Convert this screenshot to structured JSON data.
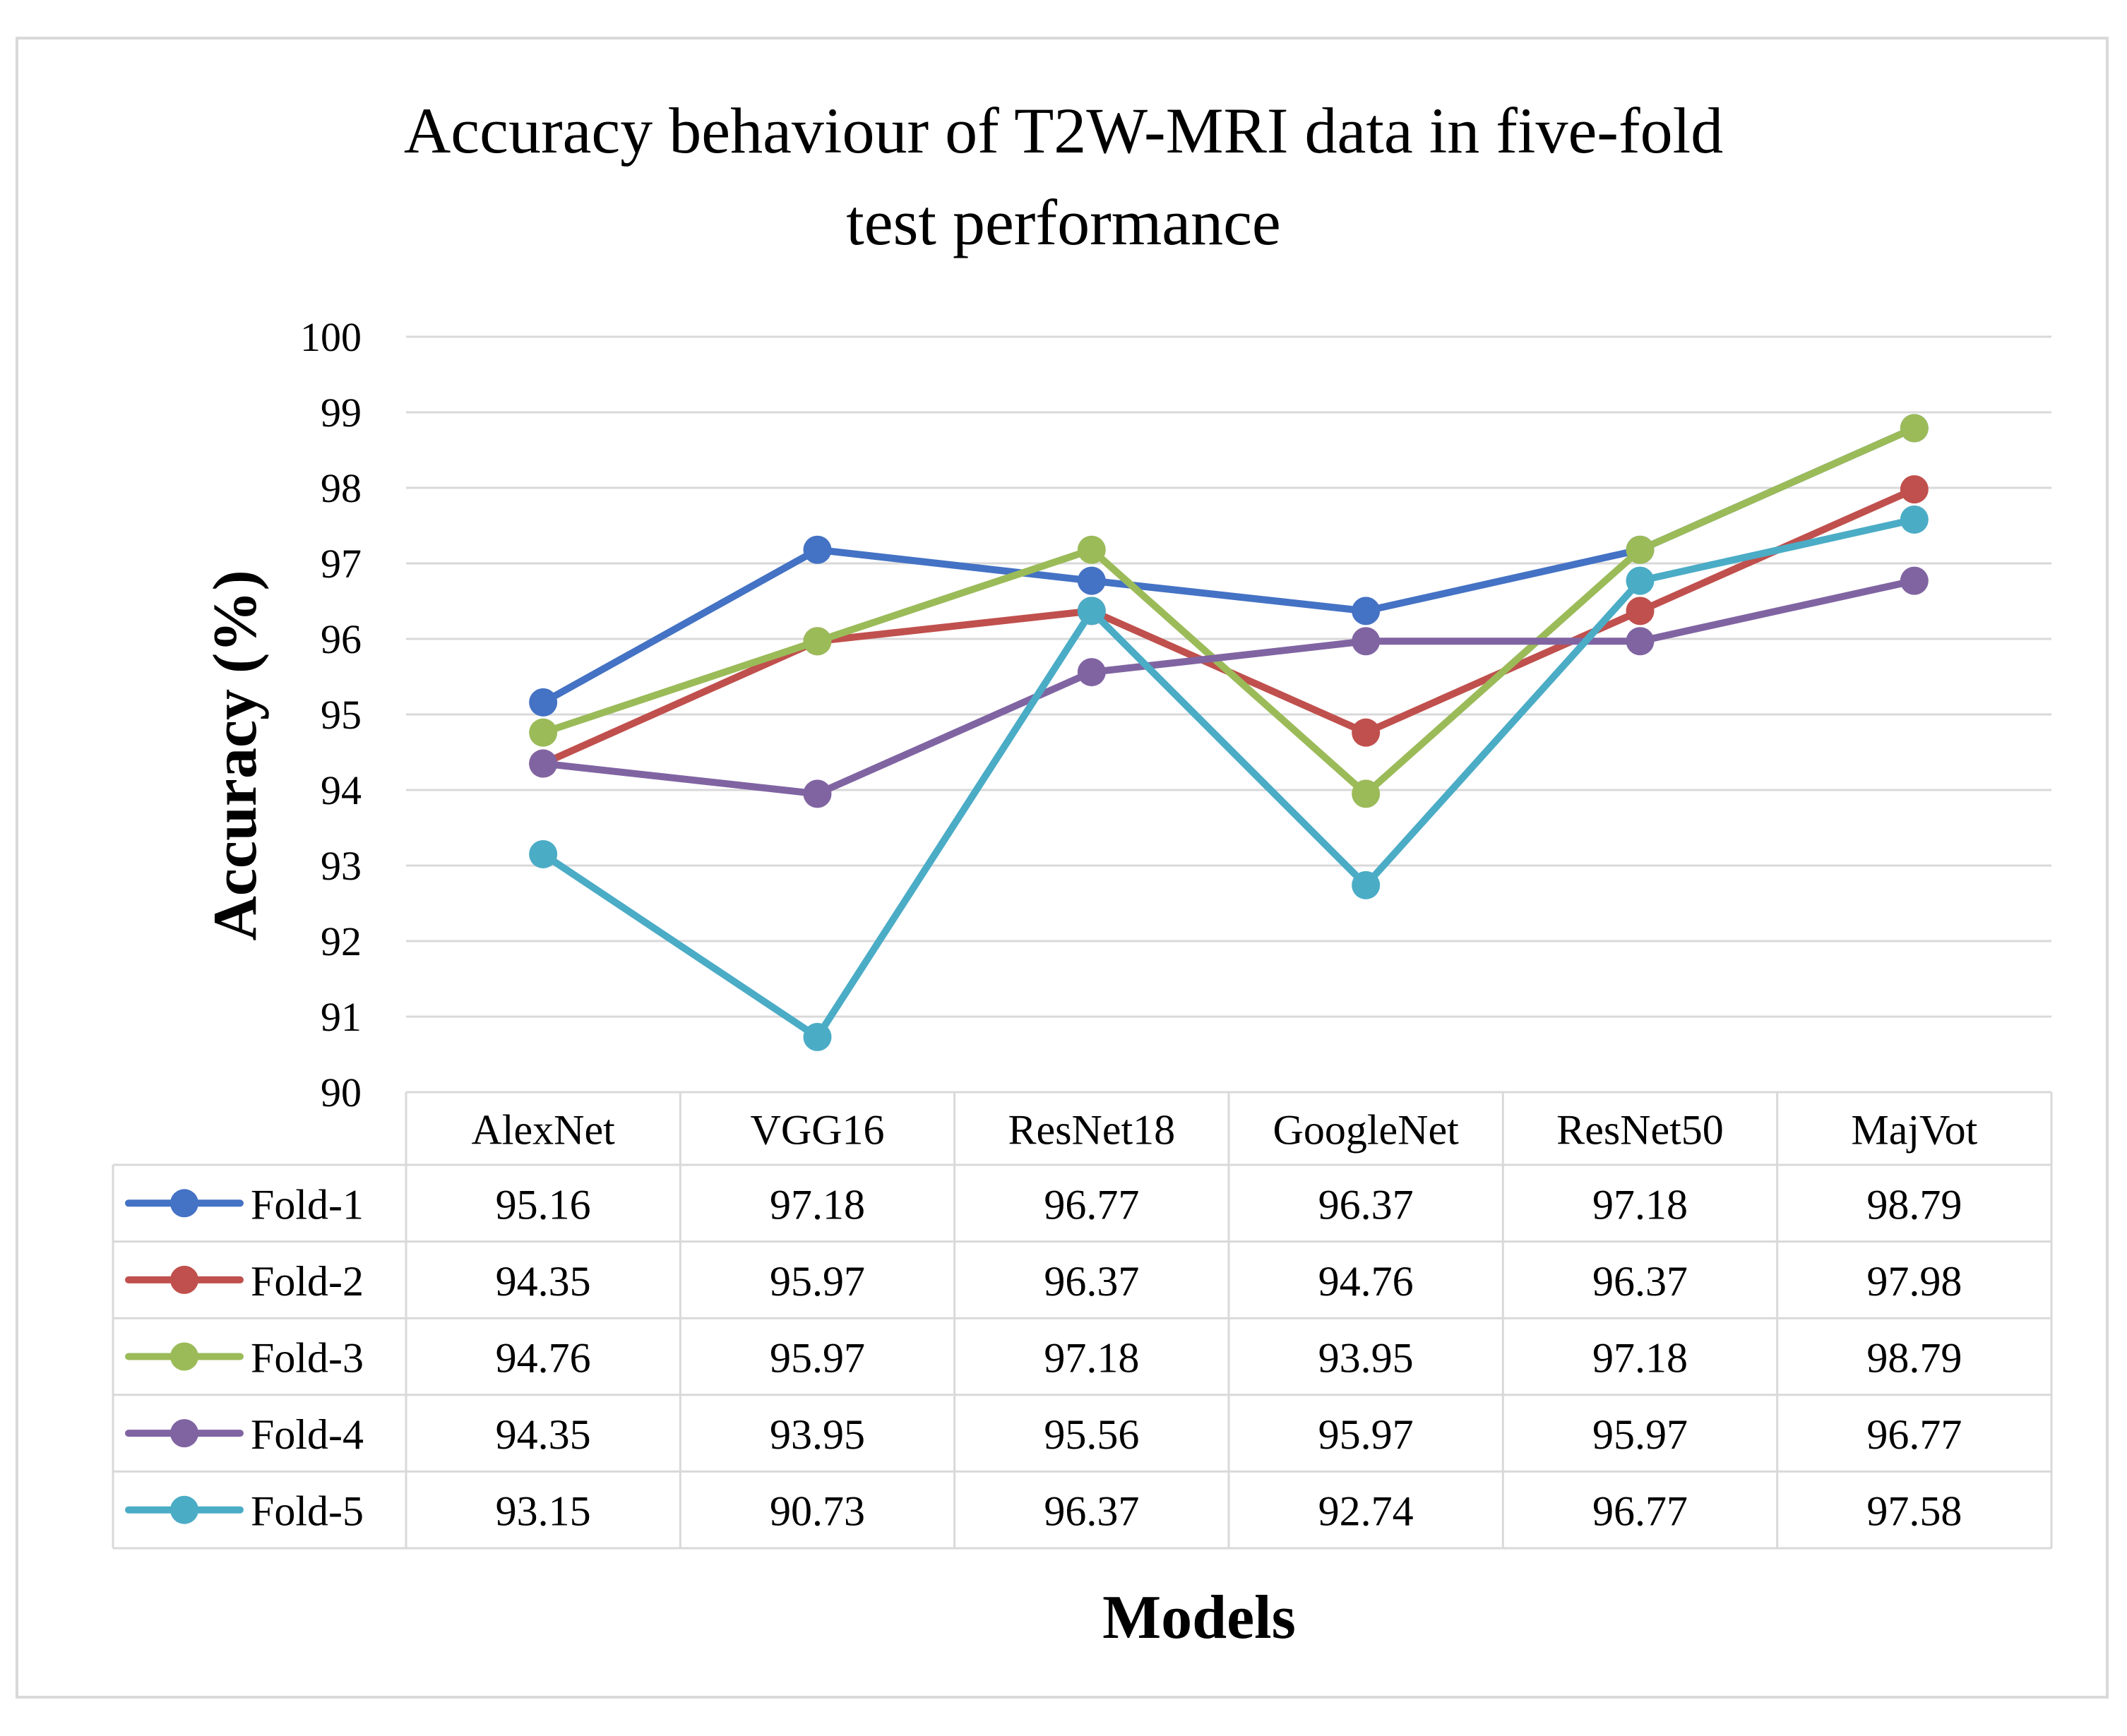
{
  "chart_data": {
    "type": "line",
    "title_lines": [
      "Accuracy  behaviour  of T2W-MRI data in five-fold",
      "test performance"
    ],
    "xlabel": "Models",
    "ylabel": "Accuracy (%)",
    "ylim": [
      90,
      100
    ],
    "yticks": [
      "90",
      "91",
      "92",
      "93",
      "94",
      "95",
      "96",
      "97",
      "98",
      "99",
      "100"
    ],
    "grid": true,
    "legend": "data-table",
    "categories": [
      "AlexNet",
      "VGG16",
      "ResNet18",
      "GoogleNet",
      "ResNet50",
      "MajVot"
    ],
    "series": [
      {
        "name": "Fold-1",
        "color": "#4472C4",
        "values": [
          95.16,
          97.18,
          96.77,
          96.37,
          97.18,
          98.79
        ],
        "labels": [
          "95.16",
          "97.18",
          "96.77",
          "96.37",
          "97.18",
          "98.79"
        ]
      },
      {
        "name": "Fold-2",
        "color": "#C0504D",
        "values": [
          94.35,
          95.97,
          96.37,
          94.76,
          96.37,
          97.98
        ],
        "labels": [
          "94.35",
          "95.97",
          "96.37",
          "94.76",
          "96.37",
          "97.98"
        ]
      },
      {
        "name": "Fold-3",
        "color": "#9BBB59",
        "values": [
          94.76,
          95.97,
          97.18,
          93.95,
          97.18,
          98.79
        ],
        "labels": [
          "94.76",
          "95.97",
          "97.18",
          "93.95",
          "97.18",
          "98.79"
        ]
      },
      {
        "name": "Fold-4",
        "color": "#8064A2",
        "values": [
          94.35,
          93.95,
          95.56,
          95.97,
          95.97,
          96.77
        ],
        "labels": [
          "94.35",
          "93.95",
          "95.56",
          "95.97",
          "95.97",
          "96.77"
        ]
      },
      {
        "name": "Fold-5",
        "color": "#4BACC6",
        "values": [
          93.15,
          90.73,
          96.37,
          92.74,
          96.77,
          97.58
        ],
        "labels": [
          "93.15",
          "90.73",
          "96.37",
          "92.74",
          "96.77",
          "97.58"
        ]
      }
    ]
  }
}
